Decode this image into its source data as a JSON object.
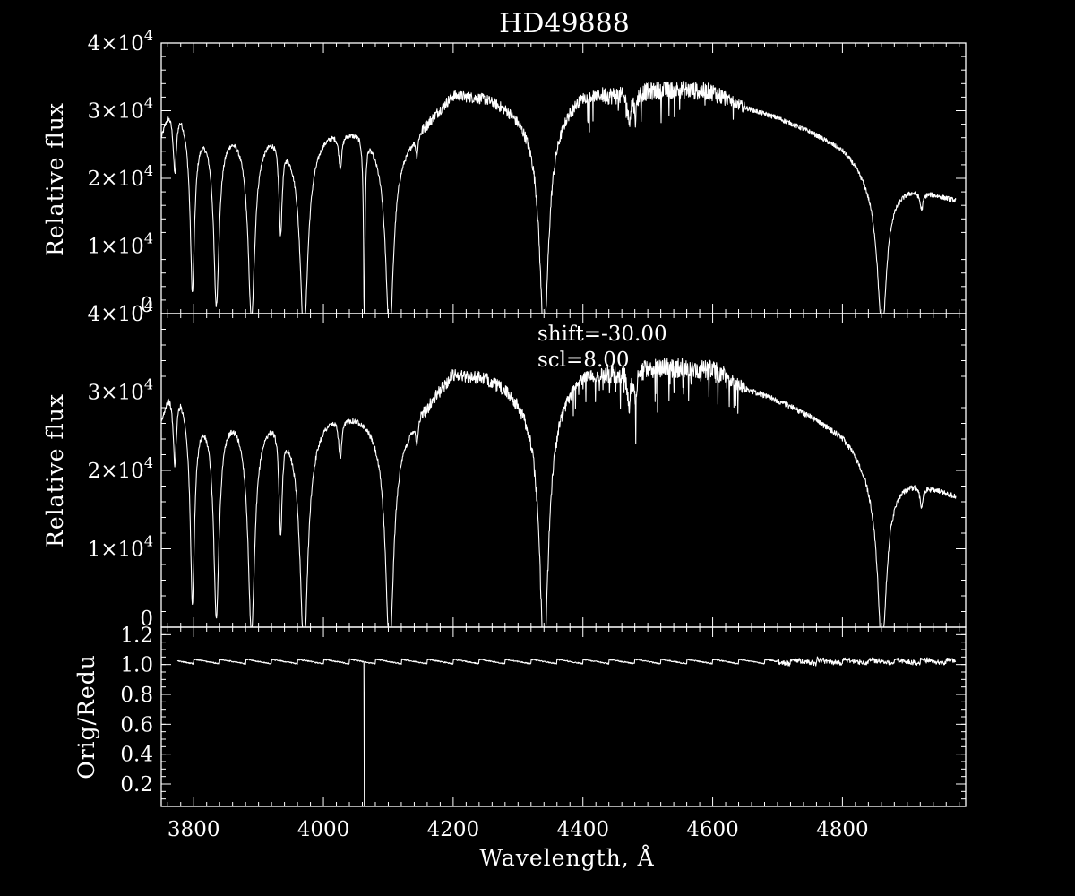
{
  "chart_data": [
    {
      "type": "line",
      "title": "HD49888",
      "xlabel": "",
      "ylabel": "Relative flux",
      "xlim": [
        3750,
        4990
      ],
      "ylim": [
        0,
        40000
      ],
      "x_ticks": [
        3800,
        4000,
        4200,
        4400,
        4600,
        4800
      ],
      "y_ticks": [
        {
          "value": 0,
          "mantissa": "0",
          "exponent": ""
        },
        {
          "value": 10000,
          "mantissa": "1×10",
          "exponent": "4"
        },
        {
          "value": 20000,
          "mantissa": "2×10",
          "exponent": "4"
        },
        {
          "value": 30000,
          "mantissa": "3×10",
          "exponent": "4"
        },
        {
          "value": 40000,
          "mantissa": "4×10",
          "exponent": "4"
        }
      ],
      "continuum": {
        "x": [
          3750,
          3760,
          3780,
          3800,
          3850,
          3900,
          3950,
          4000,
          4050,
          4100,
          4130,
          4160,
          4200,
          4250,
          4300,
          4340,
          4400,
          4450,
          4500,
          4550,
          4600,
          4650,
          4700,
          4750,
          4800,
          4850,
          4900,
          4950,
          4975
        ],
        "y": [
          26500,
          30000,
          31200,
          29500,
          28500,
          28000,
          27200,
          27500,
          27200,
          26800,
          26500,
          28500,
          32500,
          32000,
          30000,
          29500,
          32500,
          32500,
          33000,
          33200,
          32800,
          30500,
          29000,
          27000,
          24500,
          20500,
          19000,
          17500,
          16800
        ]
      },
      "absorption_lines": [
        {
          "wavelength": 3771,
          "depth": 9000,
          "width": 3
        },
        {
          "wavelength": 3798,
          "depth": 23000,
          "width": 4
        },
        {
          "wavelength": 3835,
          "depth": 24000,
          "width": 5
        },
        {
          "wavelength": 3889,
          "depth": 25500,
          "width": 6
        },
        {
          "wavelength": 3934,
          "depth": 13500,
          "width": 3
        },
        {
          "wavelength": 3970,
          "depth": 27000,
          "width": 7
        },
        {
          "wavelength": 4026,
          "depth": 5000,
          "width": 3
        },
        {
          "wavelength": 4063,
          "depth": 27200,
          "width": 1
        },
        {
          "wavelength": 4102,
          "depth": 27000,
          "width": 7
        },
        {
          "wavelength": 4144,
          "depth": 3000,
          "width": 2
        },
        {
          "wavelength": 4340,
          "depth": 29500,
          "width": 8
        },
        {
          "wavelength": 4471,
          "depth": 4000,
          "width": 3
        },
        {
          "wavelength": 4481,
          "depth": 3500,
          "width": 2
        },
        {
          "wavelength": 4861,
          "depth": 20500,
          "width": 8
        },
        {
          "wavelength": 4922,
          "depth": 2500,
          "width": 3
        }
      ]
    },
    {
      "type": "line",
      "title": "",
      "xlabel": "",
      "ylabel": "Relative flux",
      "xlim": [
        3750,
        4990
      ],
      "ylim": [
        0,
        40000
      ],
      "x_ticks": [
        3800,
        4000,
        4200,
        4400,
        4600,
        4800
      ],
      "y_ticks": [
        {
          "value": 0,
          "mantissa": "0",
          "exponent": ""
        },
        {
          "value": 10000,
          "mantissa": "1×10",
          "exponent": "4"
        },
        {
          "value": 20000,
          "mantissa": "2×10",
          "exponent": "4"
        },
        {
          "value": 30000,
          "mantissa": "3×10",
          "exponent": "4"
        },
        {
          "value": 40000,
          "mantissa": "4×10",
          "exponent": "4"
        }
      ],
      "annotations": [
        "shift=-30.00",
        "scl=8.00"
      ],
      "continuum": {
        "x": [
          3750,
          3760,
          3780,
          3800,
          3850,
          3900,
          3950,
          4000,
          4050,
          4100,
          4130,
          4160,
          4200,
          4250,
          4300,
          4340,
          4400,
          4450,
          4500,
          4550,
          4600,
          4650,
          4700,
          4750,
          4800,
          4850,
          4900,
          4950,
          4975
        ],
        "y": [
          26500,
          30000,
          31200,
          29500,
          28500,
          28000,
          27200,
          27500,
          27200,
          26800,
          26500,
          28500,
          32500,
          32000,
          30000,
          29500,
          32500,
          32500,
          33000,
          33200,
          32800,
          30500,
          29000,
          27000,
          24500,
          20500,
          19000,
          17500,
          16800
        ]
      },
      "absorption_lines": [
        {
          "wavelength": 3771,
          "depth": 9000,
          "width": 3
        },
        {
          "wavelength": 3798,
          "depth": 23000,
          "width": 4
        },
        {
          "wavelength": 3835,
          "depth": 24000,
          "width": 5
        },
        {
          "wavelength": 3889,
          "depth": 25500,
          "width": 6
        },
        {
          "wavelength": 3934,
          "depth": 13500,
          "width": 3
        },
        {
          "wavelength": 3970,
          "depth": 27000,
          "width": 7
        },
        {
          "wavelength": 4026,
          "depth": 5000,
          "width": 3
        },
        {
          "wavelength": 4102,
          "depth": 27000,
          "width": 7
        },
        {
          "wavelength": 4144,
          "depth": 3000,
          "width": 2
        },
        {
          "wavelength": 4340,
          "depth": 29500,
          "width": 8
        },
        {
          "wavelength": 4471,
          "depth": 4000,
          "width": 3
        },
        {
          "wavelength": 4481,
          "depth": 3500,
          "width": 2
        },
        {
          "wavelength": 4861,
          "depth": 20500,
          "width": 8
        },
        {
          "wavelength": 4922,
          "depth": 2500,
          "width": 3
        }
      ]
    },
    {
      "type": "line",
      "title": "",
      "xlabel": "Wavelength, Å",
      "ylabel": "Orig/Redu",
      "xlim": [
        3750,
        4990
      ],
      "ylim": [
        0.05,
        1.25
      ],
      "x_ticks": [
        3800,
        4000,
        4200,
        4400,
        4600,
        4800
      ],
      "y_ticks": [
        {
          "value": 0.2,
          "mantissa": "0.2",
          "exponent": ""
        },
        {
          "value": 0.4,
          "mantissa": "0.4",
          "exponent": ""
        },
        {
          "value": 0.6,
          "mantissa": "0.6",
          "exponent": ""
        },
        {
          "value": 0.8,
          "mantissa": "0.8",
          "exponent": ""
        },
        {
          "value": 1.0,
          "mantissa": "1.0",
          "exponent": ""
        },
        {
          "value": 1.2,
          "mantissa": "1.2",
          "exponent": ""
        }
      ],
      "ratio": {
        "base": 1.02,
        "sawtooth_period": 40,
        "sawtooth_amplitude": 0.03,
        "spike": {
          "wavelength": 4063,
          "value": 0.05
        }
      }
    }
  ]
}
